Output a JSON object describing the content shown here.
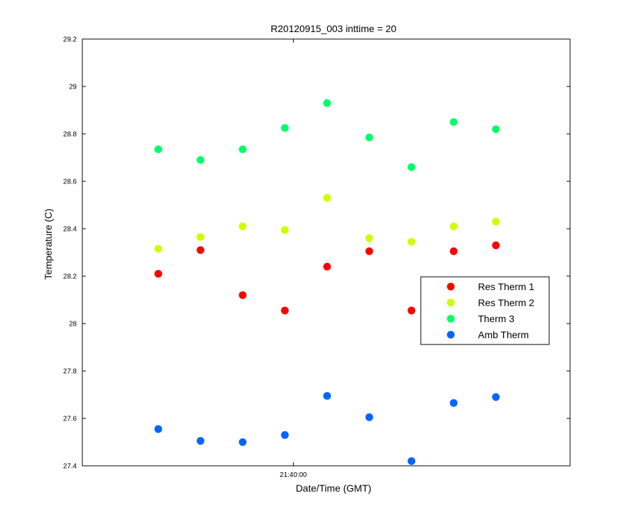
{
  "chart_data": {
    "type": "scatter",
    "title": "R20120915_003 inttime = 20",
    "xlabel": "Date/Time (GMT)",
    "ylabel": "Temperature (C)",
    "ylim": [
      27.4,
      29.2
    ],
    "yticks": [
      "27.4",
      "27.6",
      "27.8",
      "28",
      "28.2",
      "28.4",
      "28.6",
      "28.8",
      "29",
      "29.2"
    ],
    "xticks": [
      "21:40:00"
    ],
    "x": [
      "21:38:56",
      "21:39:16",
      "21:39:36",
      "21:39:56",
      "21:40:16",
      "21:40:36",
      "21:40:56",
      "21:41:16",
      "21:41:36"
    ],
    "series": [
      {
        "name": "Res Therm 1",
        "color": "#ff0000",
        "values": [
          28.21,
          28.31,
          28.12,
          28.055,
          28.24,
          28.305,
          28.055,
          28.305,
          28.33
        ]
      },
      {
        "name": "Res Therm 2",
        "color": "#ccff00",
        "values": [
          28.315,
          28.365,
          28.41,
          28.395,
          28.53,
          28.36,
          28.345,
          28.41,
          28.43
        ]
      },
      {
        "name": "Therm 3",
        "color": "#00ff66",
        "values": [
          28.735,
          28.69,
          28.735,
          28.825,
          28.93,
          28.785,
          28.66,
          28.85,
          28.82
        ]
      },
      {
        "name": "Amb Therm",
        "color": "#0066ff",
        "values": [
          27.555,
          27.505,
          27.5,
          27.53,
          27.695,
          27.605,
          27.42,
          27.665,
          27.69
        ]
      }
    ],
    "legend_position": "right"
  }
}
